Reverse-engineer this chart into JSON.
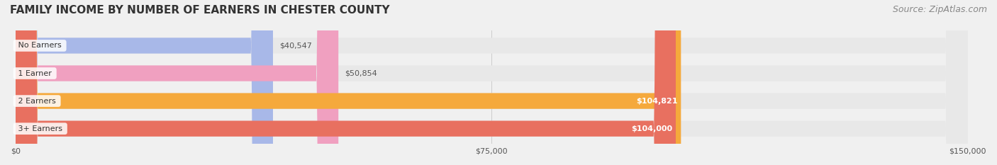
{
  "title": "FAMILY INCOME BY NUMBER OF EARNERS IN CHESTER COUNTY",
  "source": "Source: ZipAtlas.com",
  "categories": [
    "No Earners",
    "1 Earner",
    "2 Earners",
    "3+ Earners"
  ],
  "values": [
    40547,
    50854,
    104821,
    104000
  ],
  "bar_colors": [
    "#a8b8e8",
    "#f0a0c0",
    "#f5a93c",
    "#e87060"
  ],
  "label_colors": [
    "#555555",
    "#555555",
    "#ffffff",
    "#ffffff"
  ],
  "label_texts": [
    "$40,547",
    "$50,854",
    "$104,821",
    "$104,000"
  ],
  "bg_color": "#f0f0f0",
  "bar_bg_color": "#e8e8e8",
  "xlim": [
    0,
    150000
  ],
  "xticks": [
    0,
    75000,
    150000
  ],
  "xtick_labels": [
    "$0",
    "$75,000",
    "$150,000"
  ],
  "title_fontsize": 11,
  "source_fontsize": 9,
  "bar_height": 0.55,
  "figsize": [
    14.06,
    2.33
  ],
  "dpi": 100
}
